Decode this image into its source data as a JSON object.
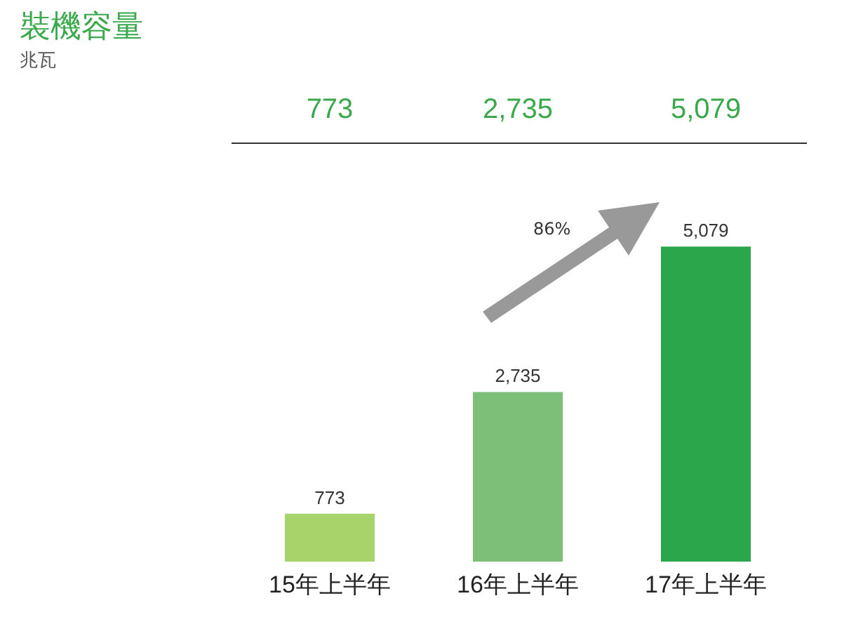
{
  "chart_data": {
    "type": "bar",
    "title": "裝機容量",
    "subtitle": "兆瓦",
    "categories": [
      "15年上半年",
      "16年上半年",
      "17年上半年"
    ],
    "values": [
      773,
      2735,
      5079
    ],
    "colors": [
      "#a6d36a",
      "#7dbe78",
      "#2ba64a"
    ],
    "value_labels": [
      "773",
      "2,735",
      "5,079"
    ],
    "annotations": [
      "86%"
    ]
  }
}
